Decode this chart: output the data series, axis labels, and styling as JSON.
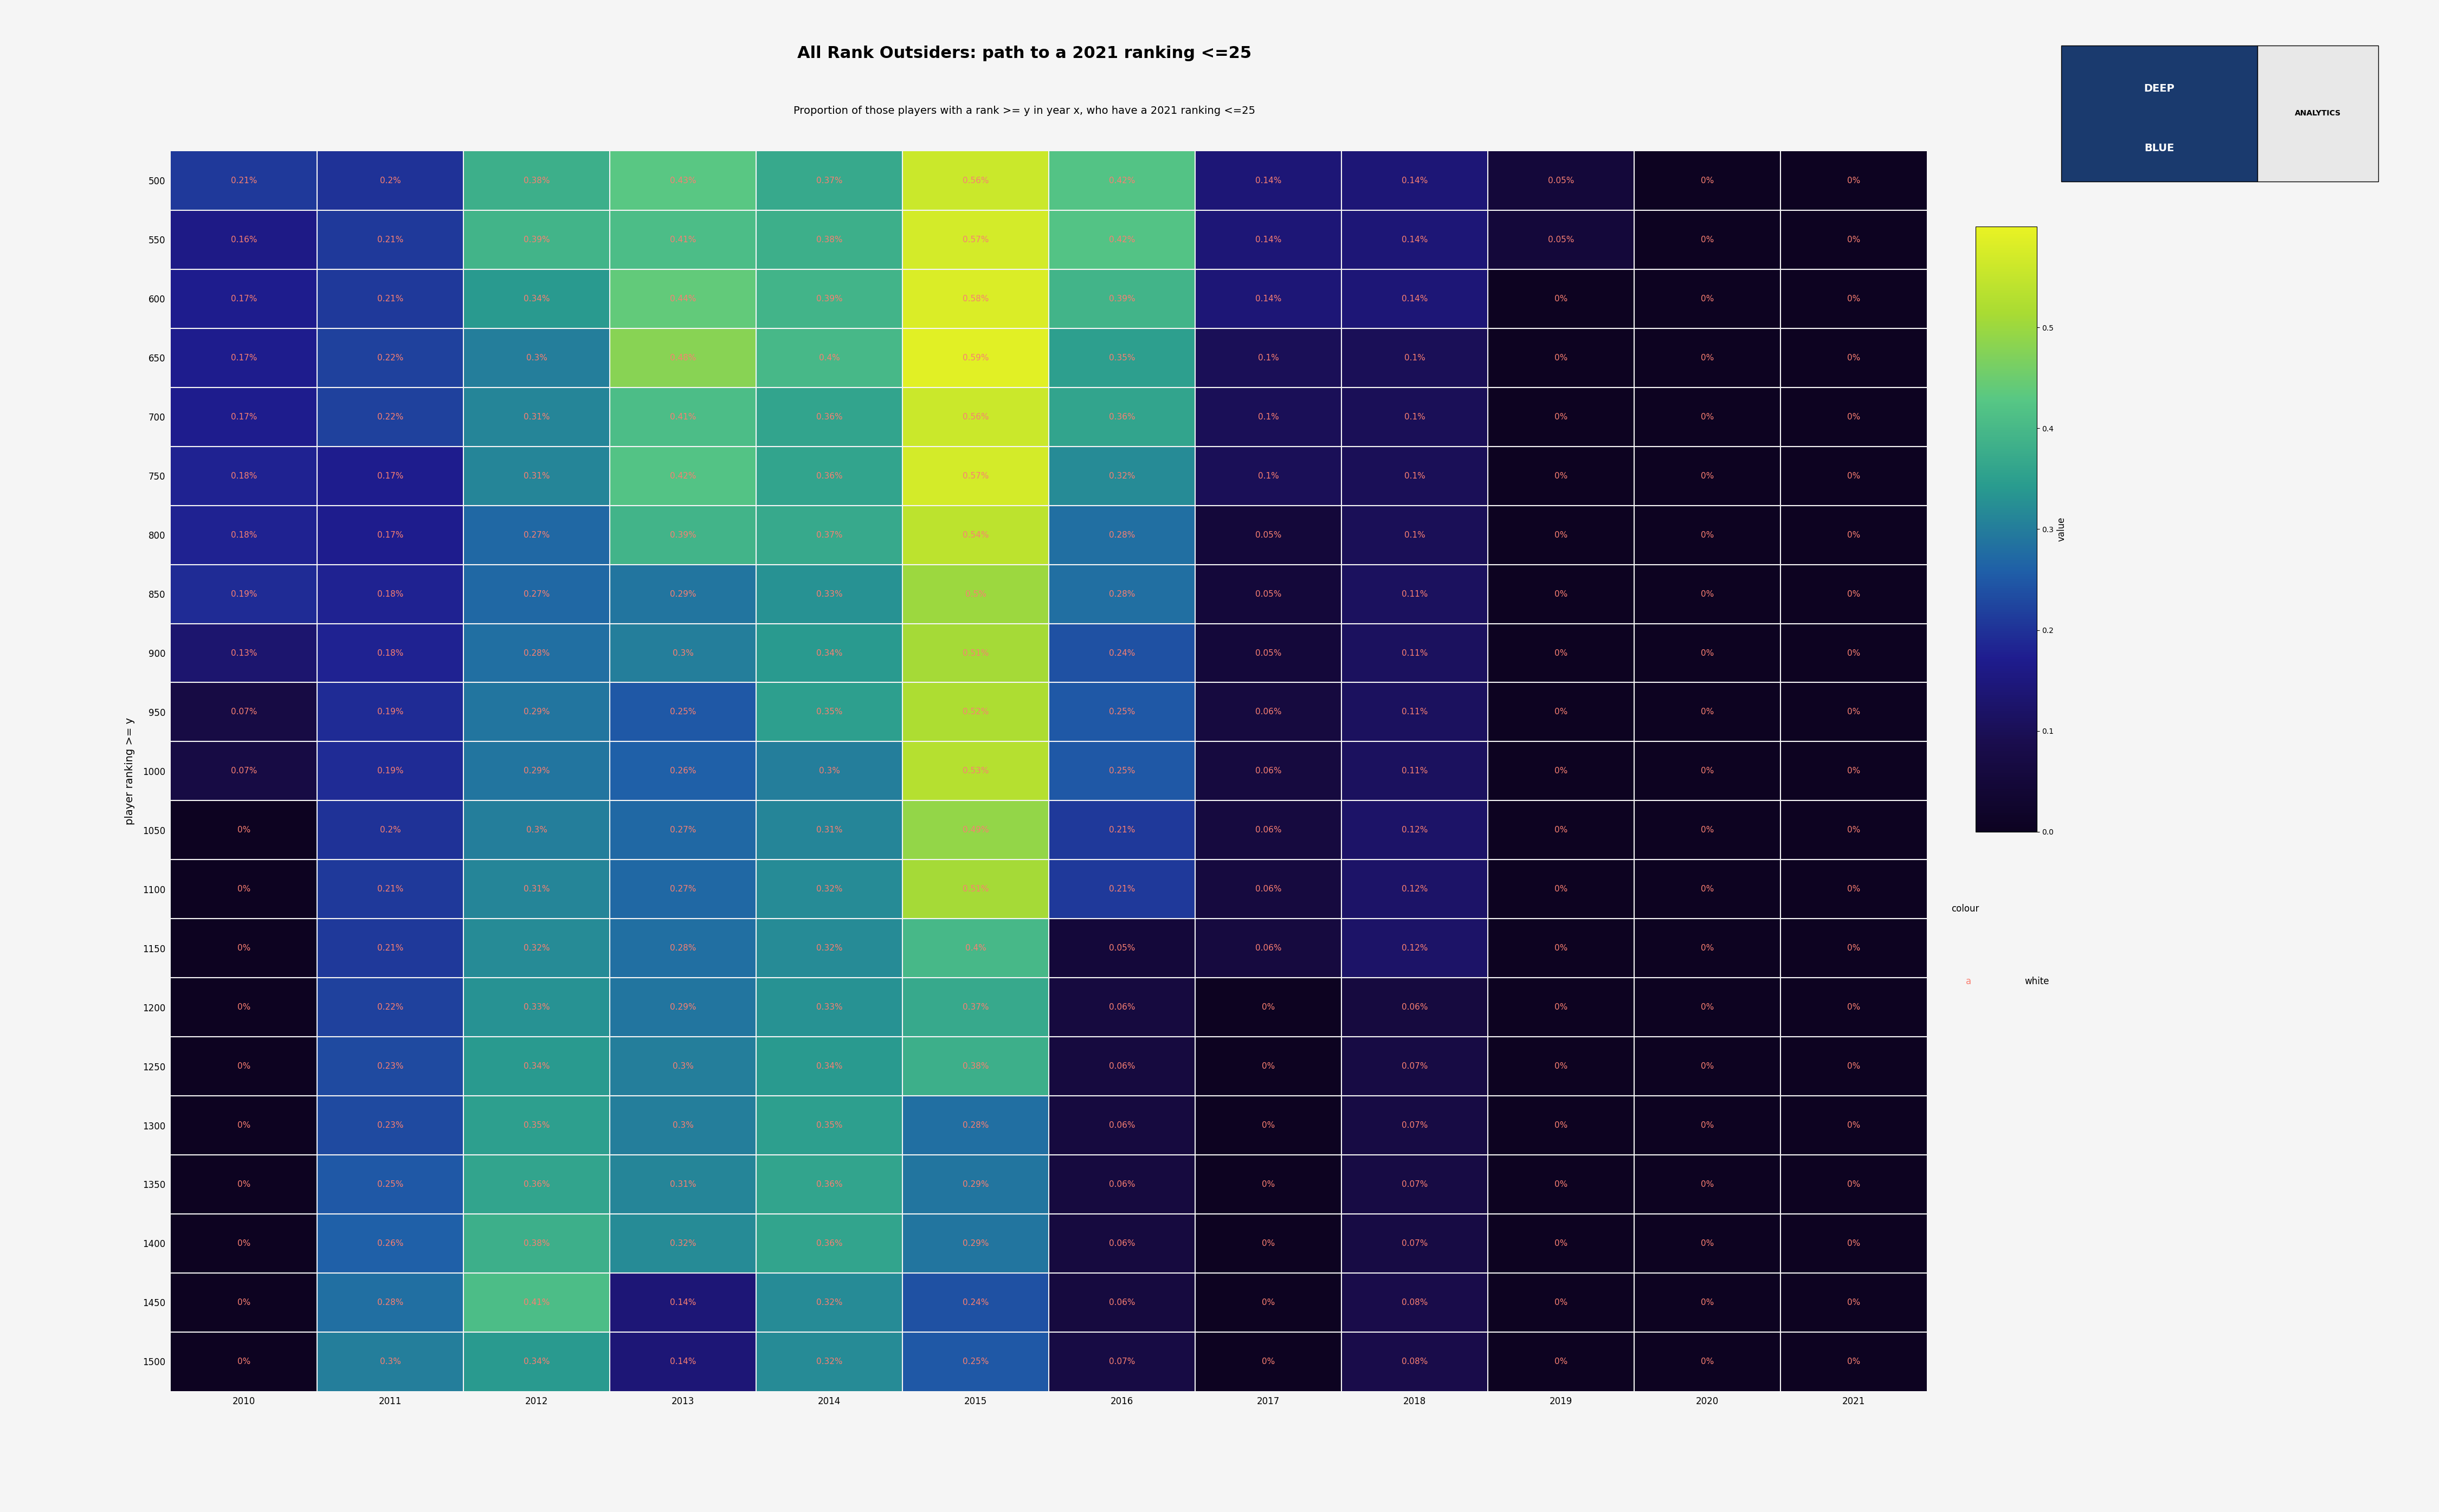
{
  "title": "All Rank Outsiders: path to a 2021 ranking <=25",
  "subtitle": "Proportion of those players with a rank >= y in year x, who have a 2021 ranking <=25",
  "xlabel": "",
  "ylabel": "player ranking >= y",
  "years": [
    2010,
    2011,
    2012,
    2013,
    2014,
    2015,
    2016,
    2017,
    2018,
    2019,
    2020,
    2021
  ],
  "y_ranks": [
    500,
    550,
    600,
    650,
    700,
    750,
    800,
    850,
    900,
    950,
    1000,
    1050,
    1100,
    1150,
    1200,
    1250,
    1300,
    1350,
    1400,
    1450,
    1500
  ],
  "data": [
    [
      0.0021,
      0.002,
      0.0038,
      0.0043,
      0.0037,
      0.0056,
      0.0042,
      0.0014,
      0.0014,
      0.0005,
      0.0,
      0.0
    ],
    [
      0.0016,
      0.0021,
      0.0039,
      0.0041,
      0.0038,
      0.0057,
      0.0042,
      0.0014,
      0.0014,
      0.0005,
      0.0,
      0.0
    ],
    [
      0.0017,
      0.0021,
      0.0034,
      0.0044,
      0.0039,
      0.0058,
      0.0039,
      0.0014,
      0.0014,
      0.0,
      0.0,
      0.0
    ],
    [
      0.0017,
      0.0022,
      0.003,
      0.0048,
      0.004,
      0.0059,
      0.0035,
      0.001,
      0.001,
      0.0,
      0.0,
      0.0
    ],
    [
      0.0017,
      0.0022,
      0.0031,
      0.0041,
      0.0036,
      0.0056,
      0.0036,
      0.001,
      0.001,
      0.0,
      0.0,
      0.0
    ],
    [
      0.0018,
      0.0017,
      0.0031,
      0.0042,
      0.0036,
      0.0057,
      0.0032,
      0.001,
      0.001,
      0.0,
      0.0,
      0.0
    ],
    [
      0.0018,
      0.0017,
      0.0027,
      0.0039,
      0.0037,
      0.0054,
      0.0028,
      0.0005,
      0.001,
      0.0,
      0.0,
      0.0
    ],
    [
      0.0019,
      0.0018,
      0.0027,
      0.0029,
      0.0033,
      0.005,
      0.0028,
      0.0005,
      0.0011,
      0.0,
      0.0,
      0.0
    ],
    [
      0.0013,
      0.0018,
      0.0028,
      0.003,
      0.0034,
      0.0051,
      0.0024,
      0.0005,
      0.0011,
      0.0,
      0.0,
      0.0
    ],
    [
      0.0007,
      0.0019,
      0.0029,
      0.0025,
      0.0035,
      0.0052,
      0.0025,
      0.0006,
      0.0011,
      0.0,
      0.0,
      0.0
    ],
    [
      0.0007,
      0.0019,
      0.0029,
      0.0026,
      0.003,
      0.0053,
      0.0025,
      0.0006,
      0.0011,
      0.0,
      0.0,
      0.0
    ],
    [
      0.0,
      0.002,
      0.003,
      0.0027,
      0.0031,
      0.0049,
      0.0021,
      0.0006,
      0.0012,
      0.0,
      0.0,
      0.0
    ],
    [
      0.0,
      0.0021,
      0.0031,
      0.0027,
      0.0032,
      0.0051,
      0.0021,
      0.0006,
      0.0012,
      0.0,
      0.0,
      0.0
    ],
    [
      0.0,
      0.0021,
      0.0032,
      0.0028,
      0.0032,
      0.004,
      0.0005,
      0.0006,
      0.0012,
      0.0,
      0.0,
      0.0
    ],
    [
      0.0,
      0.0022,
      0.0033,
      0.0029,
      0.0033,
      0.0037,
      0.0006,
      0.0,
      0.0006,
      0.0,
      0.0,
      0.0
    ],
    [
      0.0,
      0.0023,
      0.0034,
      0.003,
      0.0034,
      0.0038,
      0.0006,
      0.0,
      0.0007,
      0.0,
      0.0,
      0.0
    ],
    [
      0.0,
      0.0023,
      0.0035,
      0.003,
      0.0035,
      0.0028,
      0.0006,
      0.0,
      0.0007,
      0.0,
      0.0,
      0.0
    ],
    [
      0.0,
      0.0025,
      0.0036,
      0.0031,
      0.0036,
      0.0029,
      0.0006,
      0.0,
      0.0007,
      0.0,
      0.0,
      0.0
    ],
    [
      0.0,
      0.0026,
      0.0038,
      0.0032,
      0.0036,
      0.0029,
      0.0006,
      0.0,
      0.0007,
      0.0,
      0.0,
      0.0
    ],
    [
      0.0,
      0.0028,
      0.0041,
      0.0014,
      0.0032,
      0.0024,
      0.0006,
      0.0,
      0.0008,
      0.0,
      0.0,
      0.0
    ],
    [
      0.0,
      0.003,
      0.0034,
      0.0014,
      0.0032,
      0.0025,
      0.0007,
      0.0,
      0.0008,
      0.0,
      0.0,
      0.0
    ]
  ],
  "colormap_colors": [
    "#0d0221",
    "#1a0a4e",
    "#1f1b8e",
    "#1e5fa8",
    "#2a9d8f",
    "#57c785",
    "#a8db34",
    "#e9f224"
  ],
  "vmin": 0.0,
  "vmax": 0.006,
  "text_color": "#fa8072",
  "background_color": "#f5f5f5",
  "plot_bg_color": "#e8e8e8",
  "logo_text1": "DEEP",
  "logo_text2": "BLUE",
  "logo_text3": "ANALYTICS",
  "logo_bg": "#1a3a6e",
  "logo_text_bg": "#e8e8e8",
  "legend_label": "value",
  "legend_label2": "colour",
  "legend_label2_val": "white",
  "title_fontsize": 22,
  "subtitle_fontsize": 14,
  "tick_fontsize": 12,
  "cell_fontsize": 11
}
